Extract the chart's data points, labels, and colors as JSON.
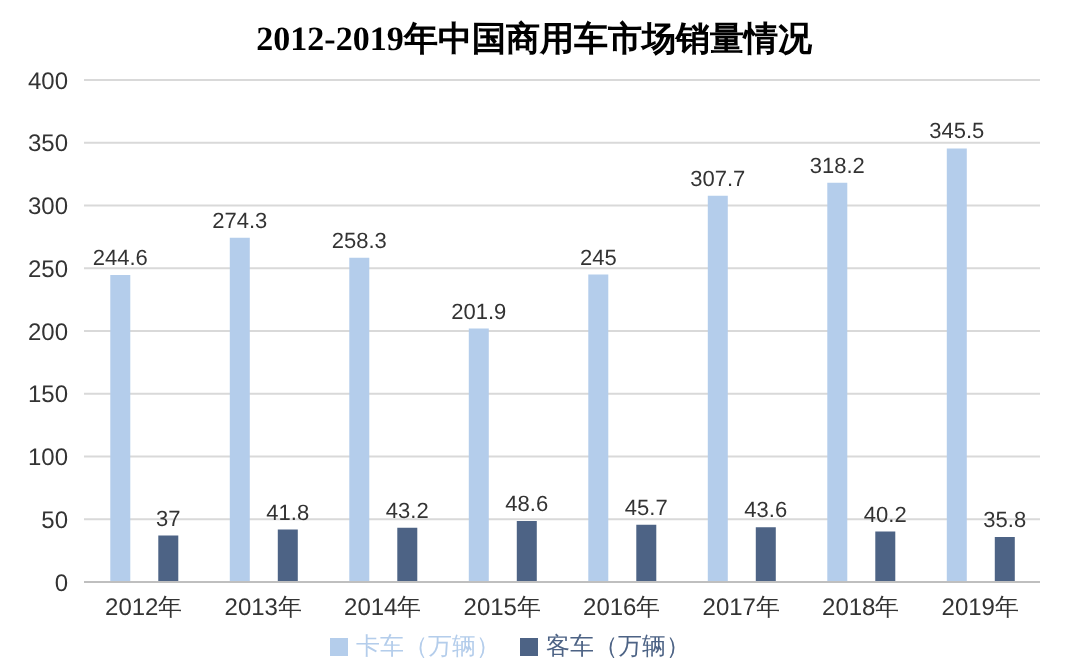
{
  "chart_data": {
    "type": "bar",
    "title": "2012-2019年中国商用车市场销量情况",
    "categories": [
      "2012年",
      "2013年",
      "2014年",
      "2015年",
      "2016年",
      "2017年",
      "2018年",
      "2019年"
    ],
    "series": [
      {
        "name": "卡车（万辆）",
        "color": "#b4cdeb",
        "values": [
          244.6,
          274.3,
          258.3,
          201.9,
          245,
          307.7,
          318.2,
          345.5
        ]
      },
      {
        "name": "客车（万辆）",
        "color": "#4d6385",
        "values": [
          37,
          41.8,
          43.2,
          48.6,
          45.7,
          43.6,
          40.2,
          35.8
        ]
      }
    ],
    "ylim": [
      0,
      400
    ],
    "yticks": [
      0,
      50,
      100,
      150,
      200,
      250,
      300,
      350,
      400
    ],
    "grid": "y",
    "legend": "bottom",
    "data_labels": true
  }
}
